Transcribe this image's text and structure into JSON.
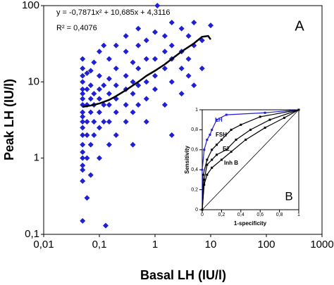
{
  "chart_data": [
    {
      "type": "scatter",
      "x_label": "Basal LH (IU/l)",
      "y_label": "Peak LH (IU/l)",
      "annotations": [
        "y = -0,7871x² + 10,685x + 4,3116",
        "R² = 0,4076",
        "A"
      ],
      "xlog": true,
      "ylog": true,
      "xlim": [
        0.01,
        1000
      ],
      "ylim": [
        0.1,
        100
      ],
      "xticks": [
        {
          "value": 0.01,
          "label": "0,01"
        },
        {
          "value": 0.1,
          "label": "0,1"
        },
        1,
        10,
        100,
        1000
      ],
      "yticks": [
        {
          "value": 0.1,
          "label": "0,1"
        },
        1,
        10,
        100
      ],
      "series": [
        {
          "color": "#1f1fd6",
          "mode": "markers",
          "x": [
            0.05,
            0.05,
            0.05,
            0.05,
            0.05,
            0.05,
            0.05,
            0.05,
            0.05,
            0.05,
            0.05,
            0.05,
            0.05,
            0.05,
            0.05,
            0.05,
            0.05,
            0.05,
            0.05,
            0.05,
            0.06,
            0.06,
            0.06,
            0.06,
            0.06,
            0.06,
            0.06,
            0.07,
            0.07,
            0.07,
            0.07,
            0.07,
            0.07,
            0.08,
            0.08,
            0.08,
            0.08,
            0.08,
            0.1,
            0.1,
            0.1,
            0.1,
            0.1,
            0.1,
            0.1,
            0.12,
            0.12,
            0.12,
            0.12,
            0.13,
            0.15,
            0.15,
            0.15,
            0.15,
            0.15,
            0.15,
            0.2,
            0.2,
            0.2,
            0.2,
            0.2,
            0.2,
            0.3,
            0.3,
            0.3,
            0.3,
            0.3,
            0.3,
            0.4,
            0.4,
            0.4,
            0.4,
            0.4,
            0.5,
            0.5,
            0.5,
            0.5,
            0.5,
            0.7,
            0.7,
            0.7,
            0.7,
            0.7,
            1,
            1,
            1,
            1,
            1.1,
            1.5,
            1.5,
            1.5,
            1.5,
            2,
            2,
            2,
            2,
            2,
            3,
            3,
            3,
            3,
            4,
            4,
            4,
            5,
            5,
            5,
            7,
            7,
            10
          ],
          "values": [
            0.15,
            0.5,
            0.7,
            0.8,
            1,
            1.2,
            1.5,
            2,
            2.5,
            3,
            3.5,
            4,
            5,
            6,
            7,
            8,
            10,
            12,
            15,
            20,
            0.3,
            1,
            2,
            3,
            5,
            8,
            13,
            0.6,
            1.5,
            4,
            6,
            9,
            14,
            2,
            3,
            5,
            7,
            18,
            1,
            2.5,
            4,
            6,
            8,
            12,
            25,
            3,
            5,
            9,
            30,
            0.13,
            1.5,
            3,
            5,
            7,
            11,
            20,
            2,
            4,
            6,
            9,
            15,
            30,
            3,
            5,
            8,
            12,
            25,
            40,
            1.5,
            4,
            7,
            10,
            18,
            5,
            9,
            15,
            30,
            50,
            3,
            6,
            10,
            20,
            35,
            8,
            12,
            20,
            45,
            100,
            5,
            15,
            25,
            40,
            2,
            10,
            20,
            30,
            60,
            7,
            15,
            25,
            50,
            12,
            20,
            40,
            9,
            30,
            60,
            15,
            35,
            55
          ]
        },
        {
          "color": "#000000",
          "mode": "line",
          "x": [
            0.05,
            0.07,
            0.1,
            0.15,
            0.2,
            0.3,
            0.5,
            0.7,
            1,
            1.5,
            2,
            3,
            5,
            7,
            9,
            10
          ],
          "values": [
            4.7,
            4.9,
            5.2,
            5.8,
            6.5,
            7.8,
            10,
            12,
            14,
            17,
            20,
            25,
            32,
            39,
            40,
            36
          ]
        }
      ]
    },
    {
      "type": "line",
      "x_label": "1-specificity",
      "y_label": "Sensitivity",
      "annotations": [
        "B"
      ],
      "xlim": [
        0,
        1
      ],
      "ylim": [
        0,
        1
      ],
      "xticks": [
        0,
        {
          "value": 0.2,
          "label": "0,2"
        },
        {
          "value": 0.4,
          "label": "0,4"
        },
        {
          "value": 0.6,
          "label": "0,6"
        },
        {
          "value": 0.8,
          "label": "0,8"
        },
        1
      ],
      "yticks": [
        0,
        {
          "value": 0.2,
          "label": "0,2"
        },
        {
          "value": 0.4,
          "label": "0,4"
        },
        {
          "value": 0.6,
          "label": "0,6"
        },
        {
          "value": 0.8,
          "label": "0,8"
        },
        1
      ],
      "series": [
        {
          "name": "LH",
          "color": "#1f1fd6",
          "x": [
            0,
            0,
            0.02,
            0.05,
            0.08,
            0.1,
            0.15,
            0.25,
            0.65,
            1
          ],
          "values": [
            0,
            0.4,
            0.6,
            0.7,
            0.75,
            0.8,
            0.9,
            0.95,
            0.97,
            1
          ]
        },
        {
          "name": "FSH",
          "color": "#000000",
          "x": [
            0,
            0.01,
            0.05,
            0.1,
            0.15,
            0.2,
            0.3,
            0.4,
            0.6,
            1
          ],
          "values": [
            0,
            0.35,
            0.5,
            0.6,
            0.65,
            0.7,
            0.8,
            0.85,
            0.93,
            1
          ]
        },
        {
          "name": "E2",
          "color": "#000000",
          "x": [
            0,
            0.02,
            0.05,
            0.1,
            0.15,
            0.25,
            0.35,
            0.5,
            0.7,
            1
          ],
          "values": [
            0,
            0.3,
            0.45,
            0.5,
            0.55,
            0.6,
            0.7,
            0.8,
            0.9,
            1
          ]
        },
        {
          "name": "Inh B",
          "color": "#000000",
          "x": [
            0,
            0.02,
            0.05,
            0.1,
            0.2,
            0.3,
            0.45,
            0.65,
            0.85,
            1
          ],
          "values": [
            0,
            0.25,
            0.35,
            0.42,
            0.5,
            0.58,
            0.7,
            0.82,
            0.92,
            1
          ]
        }
      ]
    }
  ]
}
